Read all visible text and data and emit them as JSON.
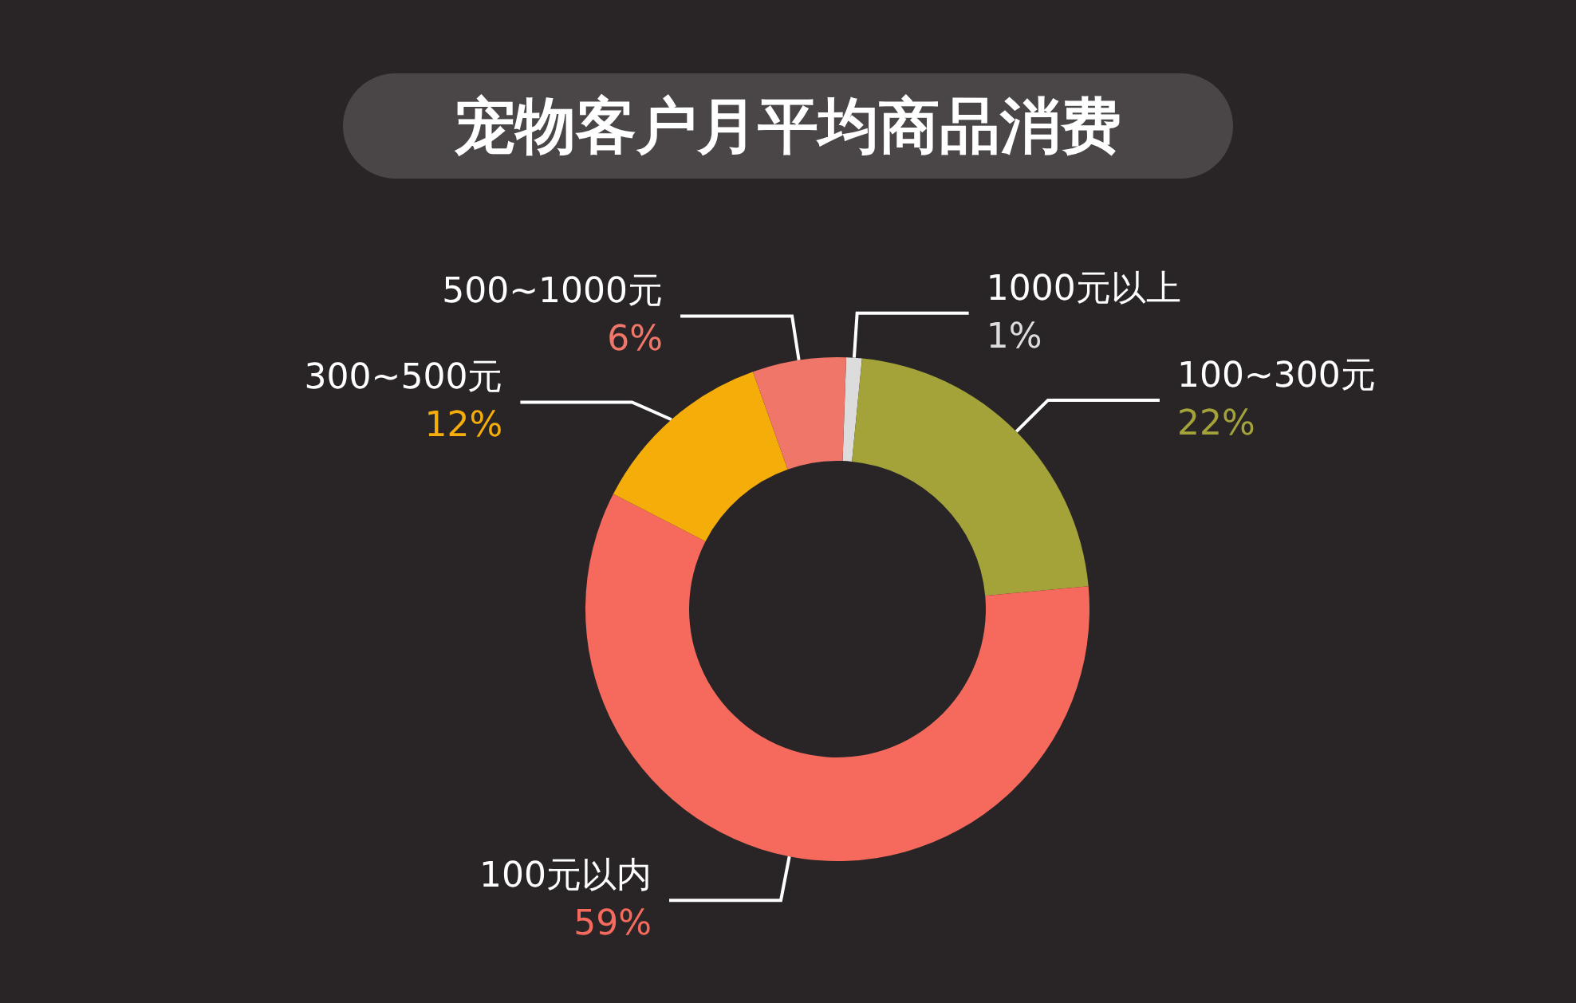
{
  "chart_data": {
    "type": "donut",
    "title": "宠物客户月平均商品消费",
    "categories": [
      "1000元以上",
      "100~300元",
      "100元以内",
      "300~500元",
      "500~1000元"
    ],
    "values": [
      1,
      22,
      59,
      12,
      6
    ],
    "colors": [
      "#dcdcdc",
      "#a3a33a",
      "#f66a5e",
      "#f5ad0a",
      "#ef7668"
    ],
    "value_labels": [
      "1%",
      "22%",
      "59%",
      "12%",
      "6%"
    ]
  }
}
